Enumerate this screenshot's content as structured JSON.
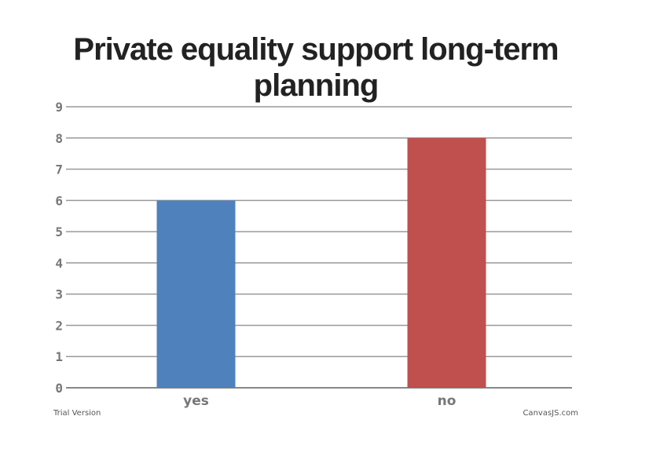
{
  "chart_data": {
    "type": "bar",
    "title_lines": [
      "Private equality support long-term",
      "planning"
    ],
    "categories": [
      "yes",
      "no"
    ],
    "values": [
      6,
      8
    ],
    "bar_colors": [
      "#4f81bc",
      "#c0504e"
    ],
    "ylim": [
      0,
      9
    ],
    "yticks": [
      0,
      1,
      2,
      3,
      4,
      5,
      6,
      7,
      8,
      9
    ],
    "grid": true,
    "xlabel": "",
    "ylabel": ""
  },
  "footer": {
    "left": "Trial Version",
    "right": "CanvasJS.com"
  }
}
